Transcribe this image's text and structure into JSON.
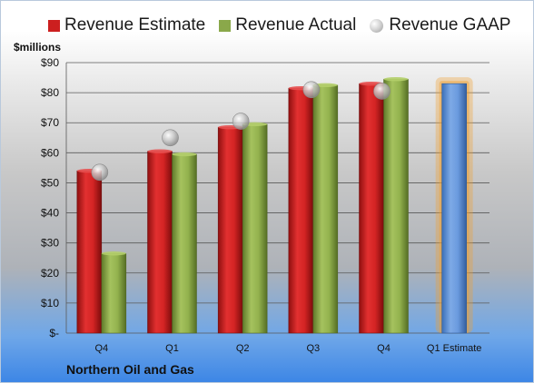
{
  "chart_data": {
    "type": "bar",
    "ylabel": "$millions",
    "ylim": [
      0,
      90
    ],
    "yticks": [
      0,
      10,
      20,
      30,
      40,
      50,
      60,
      70,
      80,
      90
    ],
    "ytick_labels": [
      "$-",
      "$10",
      "$20",
      "$30",
      "$40",
      "$50",
      "$60",
      "$70",
      "$80",
      "$90"
    ],
    "categories": [
      "Q4",
      "Q1",
      "Q2",
      "Q3",
      "Q4",
      "Q1 Estimate"
    ],
    "series": [
      {
        "name": "Revenue Estimate",
        "color": "#cc1f1f",
        "values": [
          54,
          60.5,
          68.5,
          81.5,
          83,
          null
        ]
      },
      {
        "name": "Revenue Actual",
        "color": "#8aa84a",
        "values": [
          26.5,
          59.5,
          69.5,
          82.5,
          84.5,
          null
        ]
      },
      {
        "name": "Revenue GAAP",
        "color": "#c8c8c8",
        "values": [
          53.5,
          65,
          70.5,
          81,
          80.5,
          null
        ]
      }
    ],
    "estimate": {
      "category": "Q1 Estimate",
      "value": 83,
      "color": "#5b8fd6",
      "glow": "#f0a030"
    },
    "grid": true,
    "legend_position": "top"
  },
  "footer": {
    "company": "Northern Oil and Gas"
  }
}
